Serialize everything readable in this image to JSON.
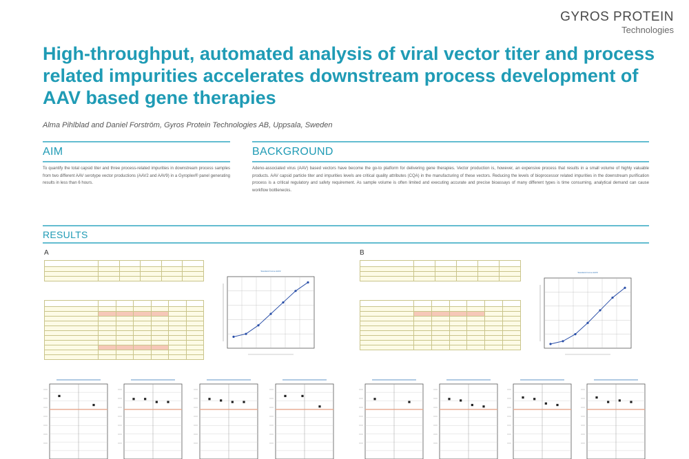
{
  "logo": {
    "line1": "GYROS PROTEIN",
    "line2": "Technologies"
  },
  "title": "High-throughput, automated analysis of viral vector titer and process related impurities accelerates downstream process development of AAV based gene therapies",
  "authors": "Alma Pihlblad and Daniel Forström, Gyros Protein Technologies AB, Uppsala, Sweden",
  "aim": {
    "heading": "AIM",
    "text": "To quantify the total capsid titer and three process-related impurities in downstream process samples from two different AAV serotype vector productions (AAV2 and AAV9) in a Gyroplex® panel generating results in less than 6 hours."
  },
  "background": {
    "heading": "BACKGROUND",
    "text": "Adeno-associated virus (AAV) based vectors have become the go-to platform for delivering gene therapies. Vector production is, however, an expensive process that results in a small volume of highly valuable products. AAV capsid particle titer and impurities levels are critical quality attributes (CQA) in the manufacturing of these vectors. Reducing the levels of bioprocessor related impurities in the downstream purification process is a critical regulatory and safety requirement. As sample volume is often limited and executing accurate and precise bioassays of many different types is time consuming, analytical demand can cause workflow bottlenecks."
  },
  "results": {
    "heading": "RESULTS"
  },
  "panels": [
    {
      "label": "A",
      "chart_title": "Standard Curve AAV2"
    },
    {
      "label": "B",
      "chart_title": "Standard Curve AAV9"
    }
  ],
  "chart_data": [
    {
      "type": "line",
      "title": "",
      "x": [
        1,
        2,
        3,
        4,
        5,
        6,
        7
      ],
      "y": [
        0.8,
        1.0,
        1.6,
        2.4,
        3.2,
        4.0,
        4.6
      ],
      "grid": true
    },
    {
      "type": "line",
      "title": "",
      "x": [
        1,
        2,
        3,
        4,
        5,
        6,
        7
      ],
      "y": [
        0.3,
        0.5,
        1.0,
        1.8,
        2.7,
        3.6,
        4.3
      ],
      "grid": true
    },
    {
      "type": "scatter",
      "title": "",
      "y": [
        4.2,
        3.6
      ],
      "reference_line": 3.3
    },
    {
      "type": "scatter",
      "title": "",
      "y": [
        4.0,
        4.0,
        3.8,
        3.8
      ],
      "reference_line": 3.3
    },
    {
      "type": "scatter",
      "title": "",
      "y": [
        4.0,
        3.9,
        3.8,
        3.8
      ],
      "reference_line": 3.3
    },
    {
      "type": "scatter",
      "title": "",
      "y": [
        4.2,
        4.2,
        3.5
      ],
      "reference_line": 3.3
    },
    {
      "type": "scatter",
      "title": "",
      "y": [
        4.0,
        3.8
      ],
      "reference_line": 3.3
    },
    {
      "type": "scatter",
      "title": "",
      "y": [
        4.0,
        3.9,
        3.6,
        3.5
      ],
      "reference_line": 3.3
    },
    {
      "type": "scatter",
      "title": "",
      "y": [
        4.1,
        4.0,
        3.7,
        3.6
      ],
      "reference_line": 3.3
    },
    {
      "type": "scatter",
      "title": "",
      "y": [
        4.1,
        3.8,
        3.9,
        3.8
      ],
      "reference_line": 3.3
    }
  ]
}
